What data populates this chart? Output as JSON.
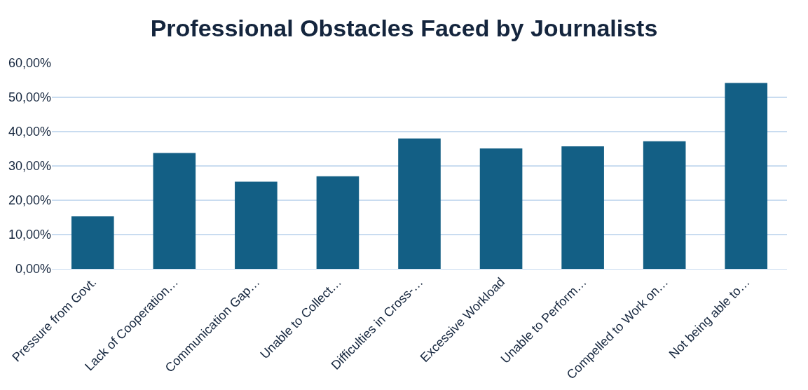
{
  "chart_data": {
    "type": "bar",
    "title": "Professional Obstacles Faced by Journalists",
    "categories": [
      "Pressure from Govt.",
      "Lack of Cooperation…",
      "Communication Gap…",
      "Unable to Collect…",
      "Difficulties in Cross-…",
      "Excessive Workload",
      "Unable to Perform…",
      "Compelled to Work on…",
      "Not being able to…"
    ],
    "values": [
      15.3,
      33.8,
      25.4,
      27.0,
      38.0,
      35.1,
      35.7,
      37.2,
      54.2
    ],
    "color": "#135f85",
    "ylim": [
      0,
      60
    ],
    "yticks": [
      {
        "value": 0,
        "label": "0,00%"
      },
      {
        "value": 10,
        "label": "10,00%"
      },
      {
        "value": 20,
        "label": "20,00%"
      },
      {
        "value": 30,
        "label": "30,00%"
      },
      {
        "value": 40,
        "label": "40,00%"
      },
      {
        "value": 50,
        "label": "50,00%"
      },
      {
        "value": 60,
        "label": "60,00%"
      }
    ],
    "grid": "y"
  }
}
